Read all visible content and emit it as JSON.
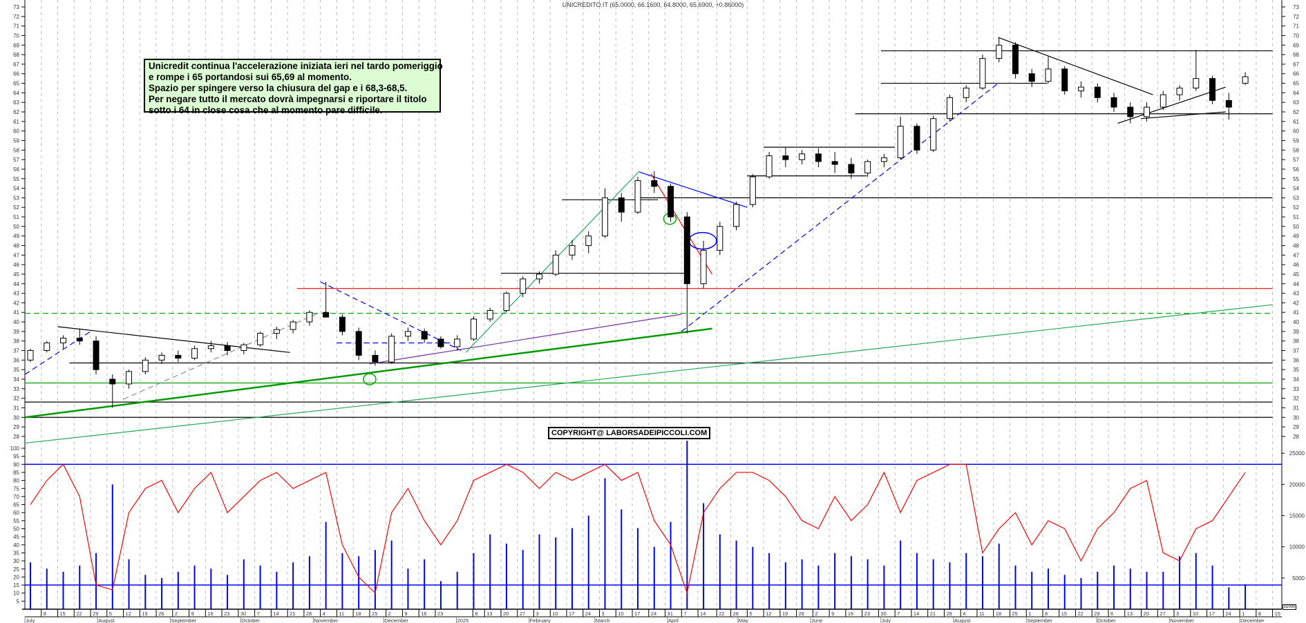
{
  "chart_data": {
    "type": "candlestick",
    "title": "UNICREDITO.IT (65.0000, 66.1600, 64.8000, 65.6900, +0.86000)",
    "price_axis": {
      "min": 27,
      "max": 73,
      "ticks": [
        28,
        29,
        30,
        31,
        32,
        33,
        34,
        35,
        36,
        37,
        38,
        39,
        40,
        41,
        42,
        43,
        44,
        45,
        46,
        47,
        48,
        49,
        50,
        51,
        52,
        53,
        54,
        55,
        56,
        57,
        58,
        59,
        60,
        61,
        62,
        63,
        64,
        65,
        66,
        67,
        68,
        69,
        70,
        71,
        72,
        73
      ]
    },
    "oscillator_axis": {
      "min": 0,
      "max": 100,
      "ticks": [
        5,
        10,
        15,
        20,
        25,
        30,
        35,
        40,
        45,
        50,
        55,
        60,
        65,
        70,
        75,
        80,
        85,
        90,
        95,
        100
      ],
      "levels": [
        90,
        15
      ]
    },
    "volume_axis": {
      "unit_label": "x1000",
      "ticks": [
        5000,
        10000,
        15000,
        20000,
        25000
      ],
      "max": 25800
    },
    "x_axis": {
      "start": "2024-07-01",
      "end": "2025-12-15",
      "months": [
        {
          "label": "July",
          "date": "2024-07-01"
        },
        {
          "label": "August",
          "date": "2024-08-01"
        },
        {
          "label": "September",
          "date": "2024-09-01"
        },
        {
          "label": "October",
          "date": "2024-10-01"
        },
        {
          "label": "November",
          "date": "2024-11-01"
        },
        {
          "label": "December",
          "date": "2024-12-01"
        },
        {
          "label": "2025",
          "date": "2025-01-01"
        },
        {
          "label": "February",
          "date": "2025-02-01"
        },
        {
          "label": "March",
          "date": "2025-03-01"
        },
        {
          "label": "April",
          "date": "2025-04-01"
        },
        {
          "label": "May",
          "date": "2025-05-01"
        },
        {
          "label": "June",
          "date": "2025-06-01"
        },
        {
          "label": "July",
          "date": "2025-07-01"
        },
        {
          "label": "August",
          "date": "2025-08-01"
        },
        {
          "label": "September",
          "date": "2025-09-01"
        },
        {
          "label": "October",
          "date": "2025-10-01"
        },
        {
          "label": "November",
          "date": "2025-11-01"
        },
        {
          "label": "December",
          "date": "2025-12-01"
        }
      ],
      "day_ticks": [
        "2024-07-08",
        "2024-07-15",
        "2024-07-22",
        "2024-07-29",
        "2024-08-05",
        "2024-08-12",
        "2024-08-19",
        "2024-08-26",
        "2024-09-02",
        "2024-09-09",
        "2024-09-16",
        "2024-09-23",
        "2024-09-30",
        "2024-10-07",
        "2024-10-14",
        "2024-10-21",
        "2024-10-28",
        "2024-11-04",
        "2024-11-11",
        "2024-11-18",
        "2024-11-25",
        "2024-12-02",
        "2024-12-09",
        "2024-12-16",
        "2024-12-23",
        "2025-01-08",
        "2025-01-13",
        "2025-01-20",
        "2025-01-27",
        "2025-02-03",
        "2025-02-10",
        "2025-02-17",
        "2025-02-24",
        "2025-03-03",
        "2025-03-10",
        "2025-03-17",
        "2025-03-24",
        "2025-03-31",
        "2025-04-07",
        "2025-04-14",
        "2025-04-22",
        "2025-04-28",
        "2025-05-05",
        "2025-05-12",
        "2025-05-19",
        "2025-05-26",
        "2025-06-02",
        "2025-06-09",
        "2025-06-16",
        "2025-06-23",
        "2025-06-30",
        "2025-07-07",
        "2025-07-14",
        "2025-07-21",
        "2025-07-28",
        "2025-08-04",
        "2025-08-11",
        "2025-08-18",
        "2025-08-25",
        "2025-09-01",
        "2025-09-08",
        "2025-09-15",
        "2025-09-22",
        "2025-09-29",
        "2025-10-06",
        "2025-10-13",
        "2025-10-20",
        "2025-10-27",
        "2025-11-03",
        "2025-11-10",
        "2025-11-17",
        "2025-11-24",
        "2025-12-01",
        "2025-12-08",
        "2025-12-15"
      ]
    },
    "candles_weekly": [
      [
        "2024-07-01",
        36,
        37.2,
        35.8,
        37
      ],
      [
        "2024-07-08",
        37,
        38,
        36.8,
        37.8
      ],
      [
        "2024-07-15",
        37.8,
        38.6,
        37.2,
        38.3
      ],
      [
        "2024-07-22",
        38.3,
        39.3,
        37.6,
        38
      ],
      [
        "2024-07-29",
        38,
        38.5,
        34.5,
        35
      ],
      [
        "2024-08-05",
        34,
        34.5,
        31,
        33.5
      ],
      [
        "2024-08-12",
        33.5,
        35,
        33,
        34.8
      ],
      [
        "2024-08-19",
        34.8,
        36.3,
        34.5,
        36
      ],
      [
        "2024-08-26",
        36,
        36.8,
        35.6,
        36.5
      ],
      [
        "2024-09-02",
        36.5,
        37,
        35.8,
        36.2
      ],
      [
        "2024-09-09",
        36.2,
        37.5,
        36,
        37.2
      ],
      [
        "2024-09-16",
        37.2,
        38,
        36.8,
        37.5
      ],
      [
        "2024-09-23",
        37.5,
        37.9,
        36.5,
        37
      ],
      [
        "2024-09-30",
        37,
        37.8,
        36.6,
        37.6
      ],
      [
        "2024-10-07",
        37.6,
        39,
        37.4,
        38.8
      ],
      [
        "2024-10-14",
        38.8,
        39.5,
        38.2,
        39.2
      ],
      [
        "2024-10-21",
        39.2,
        40.2,
        38.8,
        40
      ],
      [
        "2024-10-28",
        40,
        41.2,
        39.6,
        41
      ],
      [
        "2024-11-04",
        41,
        44.2,
        40.8,
        40.5
      ],
      [
        "2024-11-11",
        40.5,
        40.8,
        38.6,
        39
      ],
      [
        "2024-11-18",
        39,
        39.4,
        36,
        36.5
      ],
      [
        "2024-11-25",
        36.5,
        37,
        35.4,
        35.8
      ],
      [
        "2024-12-02",
        35.8,
        38.8,
        35.6,
        38.5
      ],
      [
        "2024-12-09",
        38.5,
        39.4,
        38,
        39
      ],
      [
        "2024-12-16",
        39,
        39.3,
        37.8,
        38.2
      ],
      [
        "2024-12-23",
        38.2,
        38.5,
        37.2,
        37.4
      ],
      [
        "2024-12-30",
        37.4,
        38.6,
        37,
        38.2
      ],
      [
        "2025-01-06",
        38.2,
        40.6,
        38,
        40.3
      ],
      [
        "2025-01-13",
        40.3,
        41.5,
        40,
        41.2
      ],
      [
        "2025-01-20",
        41.2,
        43.2,
        41,
        43
      ],
      [
        "2025-01-27",
        43,
        44.8,
        42.6,
        44.5
      ],
      [
        "2025-02-03",
        44.5,
        45.3,
        44,
        45
      ],
      [
        "2025-02-10",
        45,
        47.5,
        44.8,
        47
      ],
      [
        "2025-02-17",
        47,
        48.6,
        46.5,
        48
      ],
      [
        "2025-02-24",
        48,
        49.5,
        47.2,
        49
      ],
      [
        "2025-03-03",
        49,
        54,
        48.8,
        53
      ],
      [
        "2025-03-10",
        53,
        53.5,
        50.5,
        51.5
      ],
      [
        "2025-03-17",
        51.5,
        55.2,
        51.3,
        54.8
      ],
      [
        "2025-03-24",
        54.8,
        55.8,
        53.5,
        54.2
      ],
      [
        "2025-03-31",
        54.2,
        54.5,
        50.5,
        51
      ],
      [
        "2025-04-07",
        51,
        51.5,
        38.8,
        44
      ],
      [
        "2025-04-14",
        44,
        48.5,
        43.5,
        47.5
      ],
      [
        "2025-04-21",
        47.5,
        50.5,
        47,
        50
      ],
      [
        "2025-04-28",
        50,
        52.6,
        49.6,
        52.3
      ],
      [
        "2025-05-05",
        52.3,
        55.5,
        52,
        55.2
      ],
      [
        "2025-05-12",
        55.2,
        57.8,
        55,
        57.4
      ],
      [
        "2025-05-19",
        57.4,
        58.3,
        56.2,
        57
      ],
      [
        "2025-05-26",
        57,
        58,
        56.5,
        57.6
      ],
      [
        "2025-06-02",
        57.6,
        58.2,
        56.2,
        56.8
      ],
      [
        "2025-06-09",
        56.8,
        57.8,
        55.6,
        56.5
      ],
      [
        "2025-06-16",
        56.5,
        57.2,
        55,
        55.6
      ],
      [
        "2025-06-23",
        55.6,
        57,
        55.2,
        56.8
      ],
      [
        "2025-06-30",
        56.8,
        57.6,
        56.2,
        57.2
      ],
      [
        "2025-07-07",
        57.2,
        61.5,
        57,
        60.5
      ],
      [
        "2025-07-14",
        60.5,
        60.8,
        57.6,
        58
      ],
      [
        "2025-07-21",
        58,
        61.6,
        57.8,
        61.3
      ],
      [
        "2025-07-28",
        61.3,
        63.8,
        61,
        63.5
      ],
      [
        "2025-08-04",
        63.5,
        64.8,
        63,
        64.5
      ],
      [
        "2025-08-11",
        64.5,
        68,
        64.3,
        67.6
      ],
      [
        "2025-08-18",
        67.6,
        69.8,
        67.2,
        69
      ],
      [
        "2025-08-25",
        69,
        69.3,
        65.5,
        66
      ],
      [
        "2025-09-01",
        66,
        66.5,
        64.6,
        65.2
      ],
      [
        "2025-09-08",
        65.2,
        67.8,
        65,
        66.5
      ],
      [
        "2025-09-15",
        66.5,
        66.8,
        63.8,
        64.2
      ],
      [
        "2025-09-22",
        64.2,
        65.2,
        63.5,
        64.6
      ],
      [
        "2025-09-29",
        64.6,
        65,
        63,
        63.5
      ],
      [
        "2025-10-06",
        63.5,
        64,
        62,
        62.5
      ],
      [
        "2025-10-13",
        62.5,
        63,
        60.8,
        61.5
      ],
      [
        "2025-10-20",
        61.5,
        63,
        61,
        62.5
      ],
      [
        "2025-10-27",
        62.5,
        64.2,
        62.2,
        63.8
      ],
      [
        "2025-11-03",
        63.8,
        64.8,
        63.2,
        64.5
      ],
      [
        "2025-11-10",
        64.5,
        68.5,
        64.2,
        65.5
      ],
      [
        "2025-11-17",
        65.5,
        65.8,
        62.8,
        63.2
      ],
      [
        "2025-11-24",
        63.2,
        64,
        61.2,
        62.5
      ],
      [
        "2025-12-01",
        65.0,
        66.16,
        64.8,
        65.69
      ]
    ],
    "oscillator_weekly": [
      65,
      80,
      90,
      70,
      15,
      12,
      60,
      75,
      80,
      60,
      75,
      85,
      60,
      70,
      80,
      85,
      75,
      80,
      85,
      40,
      20,
      10,
      60,
      75,
      55,
      40,
      55,
      80,
      85,
      90,
      85,
      75,
      85,
      80,
      85,
      90,
      80,
      85,
      55,
      40,
      10,
      60,
      75,
      85,
      85,
      80,
      70,
      55,
      50,
      70,
      55,
      65,
      85,
      60,
      80,
      85,
      90,
      90,
      35,
      50,
      60,
      40,
      55,
      50,
      30,
      50,
      60,
      75,
      80,
      35,
      30,
      50,
      55,
      70,
      85
    ],
    "volume_weekly": [
      7500,
      6500,
      6000,
      7000,
      9000,
      20000,
      8000,
      5500,
      5000,
      6000,
      7000,
      6500,
      5500,
      8000,
      7000,
      6000,
      7500,
      8500,
      14000,
      9000,
      8500,
      9500,
      11000,
      6500,
      8000,
      4500,
      6000,
      9000,
      12000,
      10500,
      9500,
      12000,
      11500,
      13000,
      15000,
      21000,
      16000,
      13000,
      10000,
      14000,
      27000,
      17000,
      12000,
      11000,
      10000,
      9000,
      7500,
      8000,
      7000,
      9000,
      8500,
      8000,
      7000,
      11000,
      9000,
      8000,
      7500,
      9000,
      8500,
      10500,
      7000,
      6000,
      6500,
      5500,
      5000,
      6000,
      7000,
      6500,
      6000,
      6000,
      8500,
      9000,
      7000,
      3500,
      4000
    ],
    "lines": [
      {
        "from": [
          "2025-07-01",
          68.4
        ],
        "to": [
          "2025-12-15",
          68.4
        ],
        "color": "#000000"
      },
      {
        "from": [
          "2025-07-01",
          65
        ],
        "to": [
          "2025-09-10",
          65
        ],
        "color": "#000000"
      },
      {
        "from": [
          "2025-06-20",
          61.8
        ],
        "to": [
          "2025-12-15",
          61.8
        ],
        "color": "#000000"
      },
      {
        "from": [
          "2025-05-12",
          58.3
        ],
        "to": [
          "2025-07-07",
          58.3
        ],
        "color": "#000000"
      },
      {
        "from": [
          "2025-05-05",
          55.3
        ],
        "to": [
          "2025-06-25",
          55.3
        ],
        "color": "#000000"
      },
      {
        "from": [
          "2025-03-20",
          53
        ],
        "to": [
          "2025-12-15",
          53
        ],
        "color": "#000000"
      },
      {
        "from": [
          "2025-02-15",
          52.8
        ],
        "to": [
          "2025-03-28",
          52.8
        ],
        "color": "#000000"
      },
      {
        "from": [
          "2025-01-20",
          45.1
        ],
        "to": [
          "2025-04-10",
          45.1
        ],
        "color": "#000000"
      },
      {
        "from": [
          "2024-10-25",
          43.5
        ],
        "to": [
          "2025-12-15",
          43.5
        ],
        "color": "#ff0000"
      },
      {
        "from": [
          "2024-07-01",
          40.9
        ],
        "to": [
          "2025-12-15",
          40.9
        ],
        "color": "#00aa00",
        "dash": true
      },
      {
        "from": [
          "2024-07-20",
          35.7
        ],
        "to": [
          "2025-12-15",
          35.7
        ],
        "color": "#000000"
      },
      {
        "from": [
          "2024-07-01",
          33.6
        ],
        "to": [
          "2025-12-15",
          33.6
        ],
        "color": "#00a000"
      },
      {
        "from": [
          "2024-07-01",
          31.6
        ],
        "to": [
          "2025-12-15",
          31.6
        ],
        "color": "#000000"
      },
      {
        "from": [
          "2024-07-01",
          30
        ],
        "to": [
          "2025-12-15",
          30
        ],
        "color": "#000000"
      },
      {
        "from": [
          "2024-07-15",
          39.5
        ],
        "to": [
          "2024-10-22",
          36.8
        ],
        "color": "#000000"
      },
      {
        "from": [
          "2024-07-01",
          34.5
        ],
        "to": [
          "2024-07-29",
          39
        ],
        "color": "#0000ff",
        "dash": true
      },
      {
        "from": [
          "2024-08-12",
          31.9
        ],
        "to": [
          "2024-11-04",
          41
        ],
        "color": "#8888aa",
        "dash": true
      },
      {
        "from": [
          "2024-11-04",
          44.2
        ],
        "to": [
          "2025-01-03",
          37
        ],
        "color": "#0000ff",
        "dash": true
      },
      {
        "from": [
          "2024-11-11",
          37.8
        ],
        "to": [
          "2025-01-03",
          37.8
        ],
        "color": "#0000ff",
        "dash": true
      },
      {
        "from": [
          "2024-11-25",
          35.6
        ],
        "to": [
          "2025-04-07",
          40.8
        ],
        "color": "#7030a0"
      },
      {
        "from": [
          "2024-07-01",
          30
        ],
        "to": [
          "2025-04-20",
          39.3
        ],
        "color": "#009900",
        "thick": true
      },
      {
        "from": [
          "2024-07-01",
          27.3
        ],
        "to": [
          "2025-12-15",
          41.8
        ],
        "color": "#22aa55"
      },
      {
        "from": [
          "2025-01-05",
          36.8
        ],
        "to": [
          "2025-03-20",
          55.8
        ],
        "color": "#22aa55"
      },
      {
        "from": [
          "2025-03-20",
          55.7
        ],
        "to": [
          "2025-05-05",
          52
        ],
        "color": "#0000ff"
      },
      {
        "from": [
          "2025-03-25",
          55.5
        ],
        "to": [
          "2025-04-20",
          45
        ],
        "color": "#ff0000"
      },
      {
        "from": [
          "2025-04-07",
          39
        ],
        "to": [
          "2025-08-20",
          65
        ],
        "color": "#0000ff",
        "dash": true
      },
      {
        "from": [
          "2025-08-20",
          69.8
        ],
        "to": [
          "2025-10-25",
          63.8
        ],
        "color": "#000000"
      },
      {
        "from": [
          "2025-10-10",
          60.8
        ],
        "to": [
          "2025-11-25",
          64.6
        ],
        "color": "#000000"
      },
      {
        "from": [
          "2025-10-20",
          61.3
        ],
        "to": [
          "2025-11-25",
          62
        ],
        "color": "#000000"
      }
    ],
    "ellipses": [
      {
        "at": [
          "2024-11-25",
          34
        ],
        "color": "#00aa00"
      },
      {
        "at": [
          "2025-04-02",
          50.8
        ],
        "color": "#00aa00"
      },
      {
        "at": [
          "2025-04-16",
          48.5
        ],
        "color": "#0000ff"
      }
    ],
    "colors": {
      "oscillator": "#ff0000",
      "volume": "#0000ff",
      "levels": "#0000ff",
      "grid": "#bbbbbb",
      "note_bg": "#dcfcd4"
    }
  },
  "note": {
    "lines": [
      "Unicredit continua l'accelerazione iniziata ieri nel tardo pomeriggio",
      "e rompe i 65 portandosi sui 65,69 al momento.",
      "Spazio per spingere verso la chiusura del gap e i 68,3-68,5.",
      "Per negare tutto il mercato dovrà impegnarsi e riportare il titolo",
      "sotto i 64 in close cosa che al momento pare difficile."
    ]
  },
  "copyright": "COPYRIGHT@ LABORSADEIPICCOLI.COM"
}
